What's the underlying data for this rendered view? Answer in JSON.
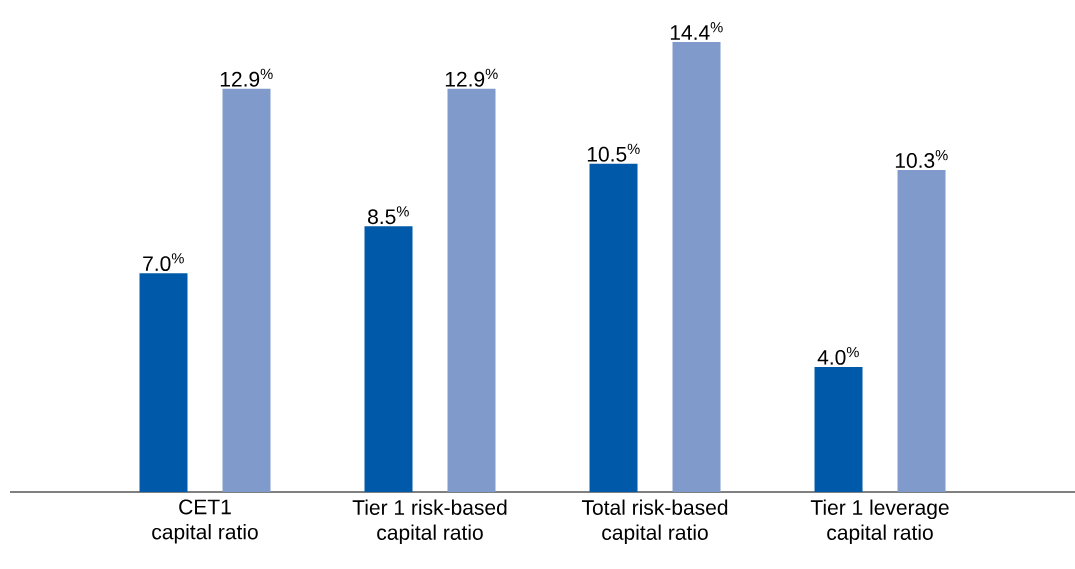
{
  "chart_data": {
    "type": "bar",
    "categories": [
      "CET1 capital ratio",
      "Tier 1 risk-based capital ratio",
      "Total risk-based capital ratio",
      "Tier 1 leverage capital ratio"
    ],
    "series": [
      {
        "color": "#005aa9",
        "values": [
          7.0,
          8.5,
          10.5,
          4.0
        ],
        "value_labels": [
          "7.0$^{%}$",
          "8.5$^{%}$",
          "10.5$^{%}$",
          "4.0$^{%}$"
        ]
      },
      {
        "color": "#7f9acb",
        "values": [
          12.9,
          12.9,
          14.4,
          10.3
        ],
        "value_labels": [
          "12.9$^{%}$",
          "12.9$^{%}$",
          "14.4$^{%}$",
          "10.3$^{%}$"
        ]
      }
    ],
    "grid": false
  }
}
